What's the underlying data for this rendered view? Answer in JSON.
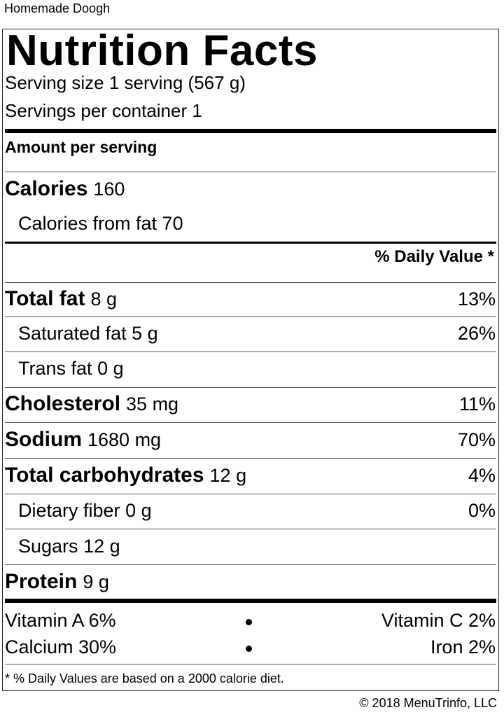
{
  "recipe_title": "Homemade Doogh",
  "label": {
    "title": "Nutrition Facts",
    "serving_size": "Serving size 1 serving (567 g)",
    "servings_per_container": "Servings per container 1",
    "amount_per_serving": "Amount per serving",
    "calories_label": "Calories",
    "calories_value": "160",
    "calories_from_fat": "Calories from fat 70",
    "daily_value_header": "% Daily Value *",
    "nutrients": [
      {
        "name": "Total fat",
        "amount": "8 g",
        "dv": "13%"
      },
      {
        "name": "Saturated fat",
        "amount": "5 g",
        "dv": "26%"
      },
      {
        "name": "Trans fat",
        "amount": "0 g",
        "dv": ""
      },
      {
        "name": "Cholesterol",
        "amount": "35 mg",
        "dv": "11%"
      },
      {
        "name": "Sodium",
        "amount": "1680 mg",
        "dv": "70%"
      },
      {
        "name": "Total carbohydrates",
        "amount": "12 g",
        "dv": "4%"
      },
      {
        "name": "Dietary fiber",
        "amount": "0 g",
        "dv": "0%"
      },
      {
        "name": "Sugars",
        "amount": "12 g",
        "dv": ""
      },
      {
        "name": "Protein",
        "amount": "9 g",
        "dv": ""
      }
    ],
    "vitamins": [
      {
        "left": "Vitamin A 6%",
        "right": "Vitamin C 2%"
      },
      {
        "left": "Calcium 30%",
        "right": "Iron 2%"
      }
    ],
    "footnote": "* % Daily Values are based on a 2000 calorie diet."
  },
  "copyright": "© 2018 MenuTrinfo, LLC"
}
